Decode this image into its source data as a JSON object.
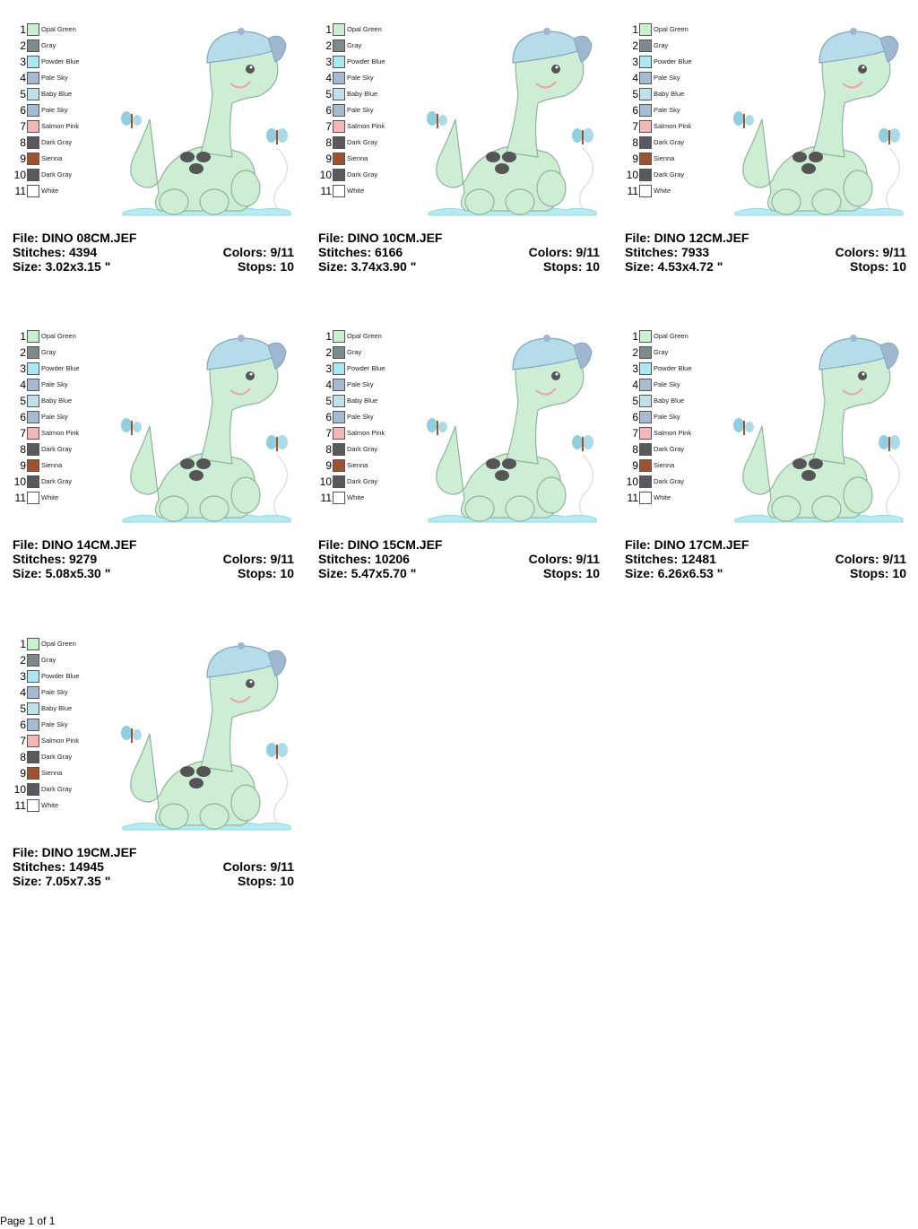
{
  "palette": [
    {
      "num": "1",
      "name": "Opal Green",
      "color": "#c9f0cf"
    },
    {
      "num": "2",
      "name": "Gray",
      "color": "#7f8a8a"
    },
    {
      "num": "3",
      "name": "Powder Blue",
      "color": "#a8e9f4"
    },
    {
      "num": "4",
      "name": "Pale Sky",
      "color": "#a6bad1"
    },
    {
      "num": "5",
      "name": "Baby Blue",
      "color": "#bfe1ea"
    },
    {
      "num": "6",
      "name": "Pale Sky",
      "color": "#a6bad1"
    },
    {
      "num": "7",
      "name": "Salmon Pink",
      "color": "#f5b6b6"
    },
    {
      "num": "8",
      "name": "Dark Gray",
      "color": "#5a5a5e"
    },
    {
      "num": "9",
      "name": "Sienna",
      "color": "#a0522d"
    },
    {
      "num": "10",
      "name": "Dark Gray",
      "color": "#5a5a5e"
    },
    {
      "num": "11",
      "name": "White",
      "color": "#ffffff"
    }
  ],
  "designs": [
    {
      "file": "File: DINO 08CM.JEF",
      "stitches": "Stitches: 4394",
      "size": "Size: 3.02x3.15 \"",
      "colors": "Colors: 9/11",
      "stops": "Stops: 10"
    },
    {
      "file": "File: DINO 10CM.JEF",
      "stitches": "Stitches: 6166",
      "size": "Size: 3.74x3.90 \"",
      "colors": "Colors: 9/11",
      "stops": "Stops: 10"
    },
    {
      "file": "File: DINO 12CM.JEF",
      "stitches": "Stitches: 7933",
      "size": "Size: 4.53x4.72 \"",
      "colors": "Colors: 9/11",
      "stops": "Stops: 10"
    },
    {
      "file": "File: DINO 14CM.JEF",
      "stitches": "Stitches: 9279",
      "size": "Size: 5.08x5.30 \"",
      "colors": "Colors: 9/11",
      "stops": "Stops: 10"
    },
    {
      "file": "File: DINO 15CM.JEF",
      "stitches": "Stitches: 10206",
      "size": "Size: 5.47x5.70 \"",
      "colors": "Colors: 9/11",
      "stops": "Stops: 10"
    },
    {
      "file": "File: DINO 17CM.JEF",
      "stitches": "Stitches: 12481",
      "size": "Size: 6.26x6.53 \"",
      "colors": "Colors: 9/11",
      "stops": "Stops: 10"
    },
    {
      "file": "File: DINO 19CM.JEF",
      "stitches": "Stitches: 14945",
      "size": "Size: 7.05x7.35 \"",
      "colors": "Colors: 9/11",
      "stops": "Stops: 10"
    }
  ],
  "footer": "Page 1 of 1"
}
